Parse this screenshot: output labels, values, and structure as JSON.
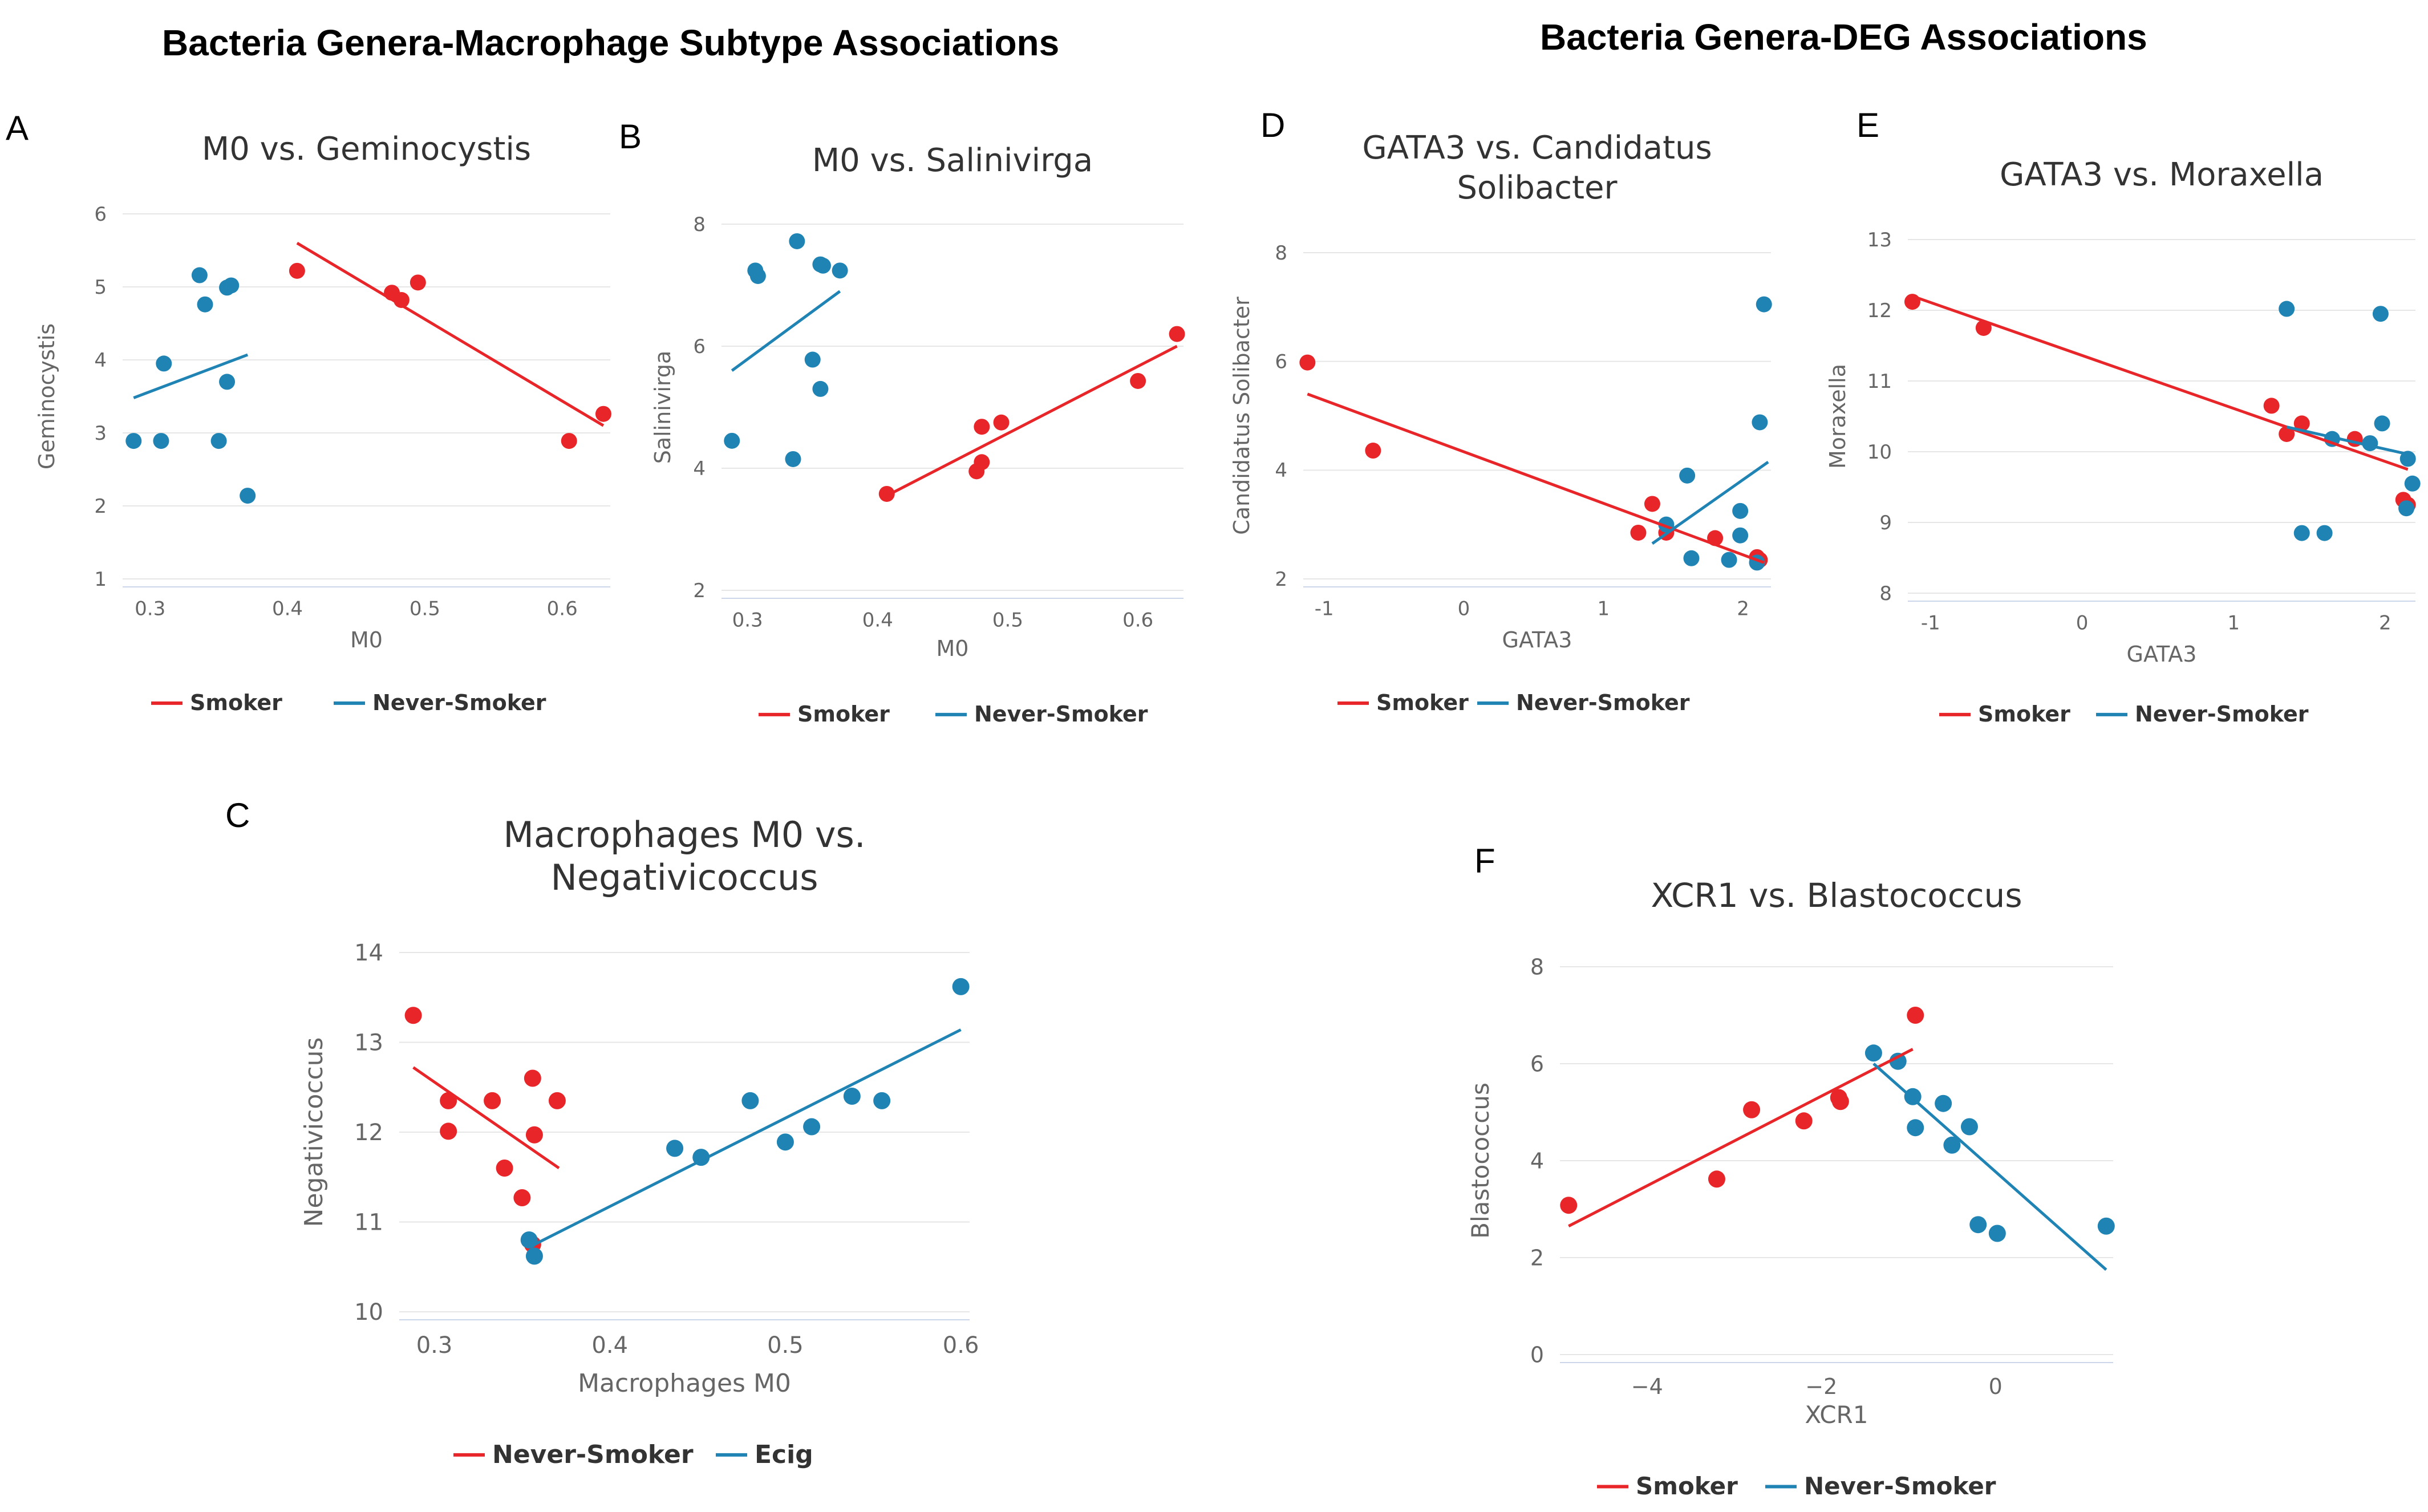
{
  "section_titles": {
    "left": "Bacteria Genera-Macrophage Subtype Associations",
    "right": "Bacteria Genera-DEG Associations"
  },
  "colors": {
    "red": "#e8262a",
    "blue": "#1f83b4"
  },
  "chart_data": [
    {
      "id": "A",
      "letter": "A",
      "type": "scatter",
      "title": [
        "M0 vs. Geminocystis"
      ],
      "xlabel": "M0",
      "ylabel": "Geminocystis",
      "xlim": [
        0.28,
        0.635
      ],
      "ylim": [
        1,
        6
      ],
      "xticks": [
        0.3,
        0.4,
        0.5,
        0.6
      ],
      "xtick_labels": [
        "0.3",
        "0.4",
        "0.5",
        "0.6"
      ],
      "yticks": [
        1,
        2,
        3,
        4,
        5,
        6
      ],
      "ytick_labels": [
        "1",
        "2",
        "3",
        "4",
        "5",
        "6"
      ],
      "legend": [
        "Smoker",
        "Never-Smoker"
      ],
      "series": [
        {
          "name": "Smoker",
          "color": "red",
          "points": [
            [
              0.407,
              5.22
            ],
            [
              0.476,
              4.92
            ],
            [
              0.483,
              4.82
            ],
            [
              0.495,
              5.06
            ],
            [
              0.605,
              2.89
            ],
            [
              0.63,
              3.26
            ]
          ],
          "fit": [
            [
              0.407,
              5.6
            ],
            [
              0.63,
              3.1
            ]
          ]
        },
        {
          "name": "Never-Smoker",
          "color": "blue",
          "points": [
            [
              0.288,
              2.89
            ],
            [
              0.308,
              2.89
            ],
            [
              0.31,
              3.95
            ],
            [
              0.336,
              5.16
            ],
            [
              0.34,
              4.76
            ],
            [
              0.356,
              4.99
            ],
            [
              0.359,
              5.02
            ],
            [
              0.356,
              3.7
            ],
            [
              0.35,
              2.89
            ],
            [
              0.371,
              2.14
            ]
          ],
          "fit": [
            [
              0.288,
              3.48
            ],
            [
              0.371,
              4.07
            ]
          ]
        }
      ]
    },
    {
      "id": "B",
      "letter": "B",
      "type": "scatter",
      "title": [
        "M0 vs. Salinivirga"
      ],
      "xlabel": "M0",
      "ylabel": "Salinivirga",
      "xlim": [
        0.28,
        0.635
      ],
      "ylim": [
        2,
        8
      ],
      "xticks": [
        0.3,
        0.4,
        0.5,
        0.6
      ],
      "xtick_labels": [
        "0.3",
        "0.4",
        "0.5",
        "0.6"
      ],
      "yticks": [
        2,
        4,
        6,
        8
      ],
      "ytick_labels": [
        "2",
        "4",
        "6",
        "8"
      ],
      "legend": [
        "Smoker",
        "Never-Smoker"
      ],
      "series": [
        {
          "name": "Smoker",
          "color": "red",
          "points": [
            [
              0.407,
              3.58
            ],
            [
              0.476,
              3.95
            ],
            [
              0.48,
              4.1
            ],
            [
              0.48,
              4.68
            ],
            [
              0.495,
              4.75
            ],
            [
              0.6,
              5.43
            ],
            [
              0.63,
              6.2
            ]
          ],
          "fit": [
            [
              0.407,
              3.55
            ],
            [
              0.63,
              6.0
            ]
          ]
        },
        {
          "name": "Never-Smoker",
          "color": "blue",
          "points": [
            [
              0.288,
              4.45
            ],
            [
              0.306,
              7.24
            ],
            [
              0.308,
              7.15
            ],
            [
              0.338,
              7.72
            ],
            [
              0.35,
              5.78
            ],
            [
              0.356,
              5.3
            ],
            [
              0.356,
              7.34
            ],
            [
              0.358,
              7.32
            ],
            [
              0.371,
              7.24
            ],
            [
              0.335,
              4.15
            ]
          ],
          "fit": [
            [
              0.288,
              5.6
            ],
            [
              0.371,
              6.9
            ]
          ]
        }
      ]
    },
    {
      "id": "C",
      "letter": "C",
      "type": "scatter",
      "title": [
        "Macrophages M0 vs.",
        "Negativicoccus"
      ],
      "xlabel": "Macrophages M0",
      "ylabel": "Negativicoccus",
      "xlim": [
        0.28,
        0.605
      ],
      "ylim": [
        10,
        14
      ],
      "xticks": [
        0.3,
        0.4,
        0.5,
        0.6
      ],
      "xtick_labels": [
        "0.3",
        "0.4",
        "0.5",
        "0.6"
      ],
      "yticks": [
        10,
        11,
        12,
        13,
        14
      ],
      "ytick_labels": [
        "10",
        "11",
        "12",
        "13",
        "14"
      ],
      "legend": [
        "Never-Smoker",
        "Ecig"
      ],
      "series": [
        {
          "name": "Never-Smoker",
          "color": "red",
          "points": [
            [
              0.288,
              13.3
            ],
            [
              0.308,
              12.35
            ],
            [
              0.308,
              12.01
            ],
            [
              0.333,
              12.35
            ],
            [
              0.34,
              11.6
            ],
            [
              0.35,
              11.27
            ],
            [
              0.356,
              12.6
            ],
            [
              0.357,
              11.97
            ],
            [
              0.37,
              12.35
            ],
            [
              0.356,
              10.75
            ]
          ],
          "fit": [
            [
              0.288,
              12.72
            ],
            [
              0.371,
              11.6
            ]
          ]
        },
        {
          "name": "Ecig",
          "color": "blue",
          "points": [
            [
              0.354,
              10.8
            ],
            [
              0.357,
              10.62
            ],
            [
              0.437,
              11.82
            ],
            [
              0.452,
              11.72
            ],
            [
              0.48,
              12.35
            ],
            [
              0.5,
              11.89
            ],
            [
              0.515,
              12.06
            ],
            [
              0.538,
              12.4
            ],
            [
              0.555,
              12.35
            ],
            [
              0.6,
              13.62
            ]
          ],
          "fit": [
            [
              0.354,
              10.72
            ],
            [
              0.6,
              13.14
            ]
          ]
        }
      ]
    },
    {
      "id": "D",
      "letter": "D",
      "type": "scatter",
      "title": [
        "GATA3 vs. Candidatus",
        "Solibacter"
      ],
      "xlabel": "GATA3",
      "ylabel": "Candidatus Solibacter",
      "xlim": [
        -1.15,
        2.2
      ],
      "ylim": [
        2,
        8
      ],
      "xticks": [
        -1,
        0,
        1,
        2
      ],
      "xtick_labels": [
        "-1",
        "0",
        "1",
        "2"
      ],
      "yticks": [
        2,
        4,
        6,
        8
      ],
      "ytick_labels": [
        "2",
        "4",
        "6",
        "8"
      ],
      "legend": [
        "Smoker",
        "Never-Smoker"
      ],
      "series": [
        {
          "name": "Smoker",
          "color": "red",
          "points": [
            [
              -1.12,
              5.98
            ],
            [
              -0.65,
              4.36
            ],
            [
              1.25,
              2.85
            ],
            [
              1.35,
              3.38
            ],
            [
              1.45,
              2.85
            ],
            [
              1.8,
              2.75
            ],
            [
              2.1,
              2.4
            ],
            [
              2.12,
              2.35
            ]
          ],
          "fit": [
            [
              -1.12,
              5.4
            ],
            [
              2.15,
              2.3
            ]
          ]
        },
        {
          "name": "Never-Smoker",
          "color": "blue",
          "points": [
            [
              1.45,
              3.0
            ],
            [
              1.6,
              3.9
            ],
            [
              1.63,
              2.38
            ],
            [
              1.9,
              2.35
            ],
            [
              1.98,
              3.25
            ],
            [
              1.98,
              2.8
            ],
            [
              2.12,
              4.88
            ],
            [
              2.15,
              7.05
            ],
            [
              2.1,
              2.3
            ]
          ],
          "fit": [
            [
              1.35,
              2.65
            ],
            [
              2.18,
              4.15
            ]
          ]
        }
      ]
    },
    {
      "id": "E",
      "letter": "E",
      "type": "scatter",
      "title": [
        "GATA3 vs. Moraxella"
      ],
      "xlabel": "GATA3",
      "ylabel": "Moraxella",
      "xlim": [
        -1.15,
        2.2
      ],
      "ylim": [
        8,
        13
      ],
      "xticks": [
        -1,
        0,
        1,
        2
      ],
      "xtick_labels": [
        "-1",
        "0",
        "1",
        "2"
      ],
      "yticks": [
        8,
        9,
        10,
        11,
        12,
        13
      ],
      "ytick_labels": [
        "8",
        "9",
        "10",
        "11",
        "12",
        "13"
      ],
      "legend": [
        "Smoker",
        "Never-Smoker"
      ],
      "series": [
        {
          "name": "Smoker",
          "color": "red",
          "points": [
            [
              -1.12,
              12.12
            ],
            [
              -0.65,
              11.75
            ],
            [
              1.25,
              10.65
            ],
            [
              1.35,
              10.25
            ],
            [
              1.45,
              10.4
            ],
            [
              1.8,
              10.18
            ],
            [
              2.12,
              9.32
            ],
            [
              2.15,
              9.25
            ]
          ],
          "fit": [
            [
              -1.12,
              12.2
            ],
            [
              2.15,
              9.75
            ]
          ]
        },
        {
          "name": "Never-Smoker",
          "color": "blue",
          "points": [
            [
              1.35,
              12.02
            ],
            [
              1.45,
              8.85
            ],
            [
              1.6,
              8.85
            ],
            [
              1.65,
              10.18
            ],
            [
              1.9,
              10.12
            ],
            [
              1.97,
              11.95
            ],
            [
              1.98,
              10.4
            ],
            [
              2.15,
              9.9
            ],
            [
              2.18,
              9.55
            ],
            [
              2.14,
              9.2
            ]
          ],
          "fit": [
            [
              1.35,
              10.35
            ],
            [
              2.18,
              9.95
            ]
          ]
        }
      ]
    },
    {
      "id": "F",
      "letter": "F",
      "type": "scatter",
      "title": [
        "XCR1 vs. Blastococcus"
      ],
      "xlabel": "XCR1",
      "ylabel": "Blastococcus",
      "xlim": [
        -5.0,
        1.35
      ],
      "ylim": [
        0,
        8
      ],
      "xticks": [
        -4,
        -2,
        0
      ],
      "xtick_labels": [
        "−4",
        "−2",
        "0"
      ],
      "yticks": [
        0,
        2,
        4,
        6,
        8
      ],
      "ytick_labels": [
        "0",
        "2",
        "4",
        "6",
        "8"
      ],
      "legend": [
        "Smoker",
        "Never-Smoker"
      ],
      "series": [
        {
          "name": "Smoker",
          "color": "red",
          "points": [
            [
              -4.9,
              3.08
            ],
            [
              -3.2,
              3.62
            ],
            [
              -2.8,
              5.05
            ],
            [
              -2.2,
              4.82
            ],
            [
              -1.8,
              5.3
            ],
            [
              -1.78,
              5.22
            ],
            [
              -0.92,
              7.0
            ]
          ],
          "fit": [
            [
              -4.9,
              2.65
            ],
            [
              -0.95,
              6.3
            ]
          ]
        },
        {
          "name": "Never-Smoker",
          "color": "blue",
          "points": [
            [
              -1.4,
              6.22
            ],
            [
              -1.12,
              6.05
            ],
            [
              -0.95,
              5.32
            ],
            [
              -0.92,
              4.68
            ],
            [
              -0.6,
              5.18
            ],
            [
              -0.5,
              4.32
            ],
            [
              -0.3,
              4.7
            ],
            [
              -0.2,
              2.68
            ],
            [
              0.02,
              2.5
            ],
            [
              1.27,
              2.65
            ]
          ],
          "fit": [
            [
              -1.4,
              6.0
            ],
            [
              1.27,
              1.75
            ]
          ]
        }
      ]
    }
  ]
}
